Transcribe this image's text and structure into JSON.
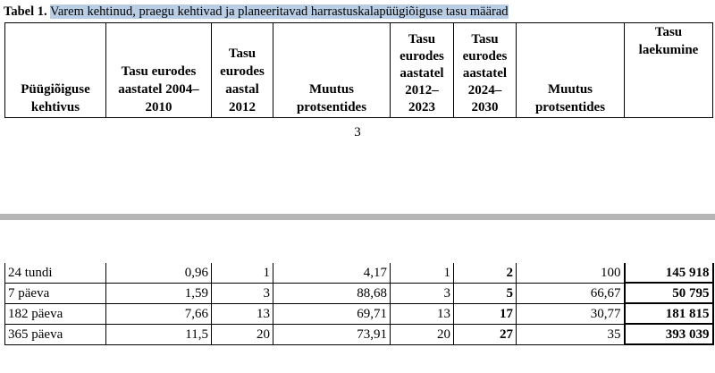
{
  "caption": {
    "label": "Tabel 1.",
    "text": "Varem kehtinud, praegu kehtivad ja planeeritavad harrastuskalapüügiõiguse tasu määrad"
  },
  "headers": {
    "validity": "Püügiõiguse kehtivus",
    "fee_2004_2010": "Tasu eurodes aastatel 2004–2010",
    "fee_2012": "Tasu eurodes aastal 2012",
    "change_pct_1": "Muutus protsentides",
    "fee_2012_2023": "Tasu eurodes aastatel 2012–2023",
    "fee_2024_2030": "Tasu eurodes aastatel 2024–2030",
    "change_pct_2": "Muutus protsentides",
    "receipts": "Tasu laekumine"
  },
  "page_number": "3",
  "rows": [
    {
      "validity": "24 tundi",
      "fee_2004_2010": "0,96",
      "fee_2012": "1",
      "change_pct_1": "4,17",
      "fee_2012_2023": "1",
      "fee_2024_2030": "2",
      "change_pct_2": "100",
      "receipts": "145 918"
    },
    {
      "validity": "7 päeva",
      "fee_2004_2010": "1,59",
      "fee_2012": "3",
      "change_pct_1": "88,68",
      "fee_2012_2023": "3",
      "fee_2024_2030": "5",
      "change_pct_2": "66,67",
      "receipts": "50 795"
    },
    {
      "validity": "182 päeva",
      "fee_2004_2010": "7,66",
      "fee_2012": "13",
      "change_pct_1": "69,71",
      "fee_2012_2023": "13",
      "fee_2024_2030": "17",
      "change_pct_2": "30,77",
      "receipts": "181 815"
    },
    {
      "validity": "365 päeva",
      "fee_2004_2010": "11,5",
      "fee_2012": "20",
      "change_pct_1": "73,91",
      "fee_2012_2023": "20",
      "fee_2024_2030": "27",
      "change_pct_2": "35",
      "receipts": "393 039"
    }
  ]
}
